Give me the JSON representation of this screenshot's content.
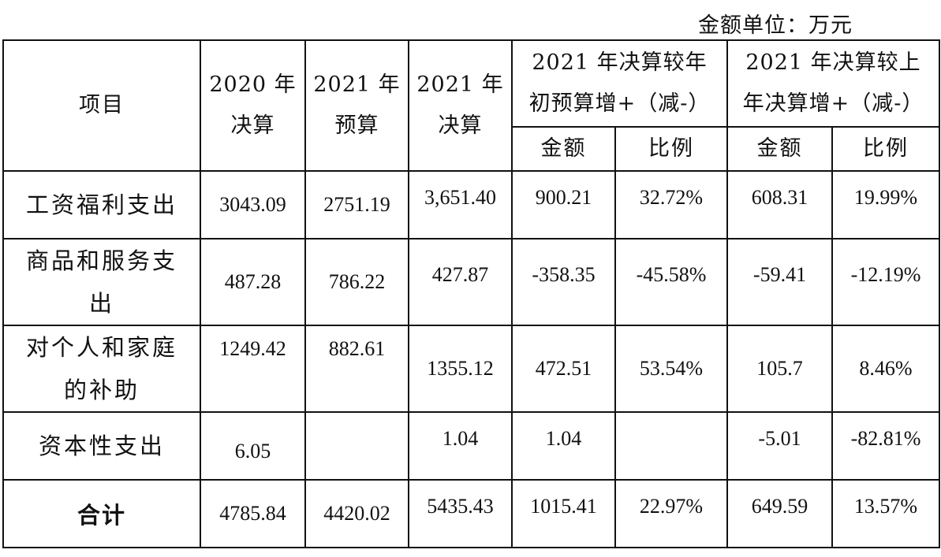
{
  "unit_label": "金额单位：万元",
  "header": {
    "item": "项目",
    "col_2020_line1": "2020 年",
    "col_2020_line2": "决算",
    "col_2021b_line1": "2021 年",
    "col_2021b_line2": "预算",
    "col_2021f_line1": "2021 年",
    "col_2021f_line2": "决算",
    "cmp_budget_line1": "2021 年决算较年",
    "cmp_budget_line2": "初预算增+（减-）",
    "cmp_prev_line1": "2021 年决算较上",
    "cmp_prev_line2": "年决算增+（减-）",
    "amount1": "金额",
    "ratio1": "比例",
    "amount2": "金额",
    "ratio2": "比例"
  },
  "rows": [
    {
      "name_line1": "工资福利支出",
      "name_line2": "",
      "y2020": "3043.09",
      "b2021": "2751.19",
      "f2021": "3,651.40",
      "diff_budget": "900.21",
      "ratio_budget": "32.72%",
      "diff_prev": "608.31",
      "ratio_prev": "19.99%"
    },
    {
      "name_line1": "商品和服务支",
      "name_line2": "出",
      "y2020": "487.28",
      "b2021": "786.22",
      "f2021": "427.87",
      "diff_budget": "-358.35",
      "ratio_budget": "-45.58%",
      "diff_prev": "-59.41",
      "ratio_prev": "-12.19%"
    },
    {
      "name_line1": "对个人和家庭",
      "name_line2": "的补助",
      "y2020": "1249.42",
      "b2021": "882.61",
      "f2021": "1355.12",
      "diff_budget": "472.51",
      "ratio_budget": "53.54%",
      "diff_prev": "105.7",
      "ratio_prev": "8.46%"
    },
    {
      "name_line1": "资本性支出",
      "name_line2": "",
      "y2020": "6.05",
      "b2021": "",
      "f2021": "1.04",
      "diff_budget": "1.04",
      "ratio_budget": "",
      "diff_prev": "-5.01",
      "ratio_prev": "-82.81%"
    }
  ],
  "total": {
    "name": "合计",
    "y2020": "4785.84",
    "b2021": "4420.02",
    "f2021": "5435.43",
    "diff_budget": "1015.41",
    "ratio_budget": "22.97%",
    "diff_prev": "649.59",
    "ratio_prev": "13.57%"
  }
}
